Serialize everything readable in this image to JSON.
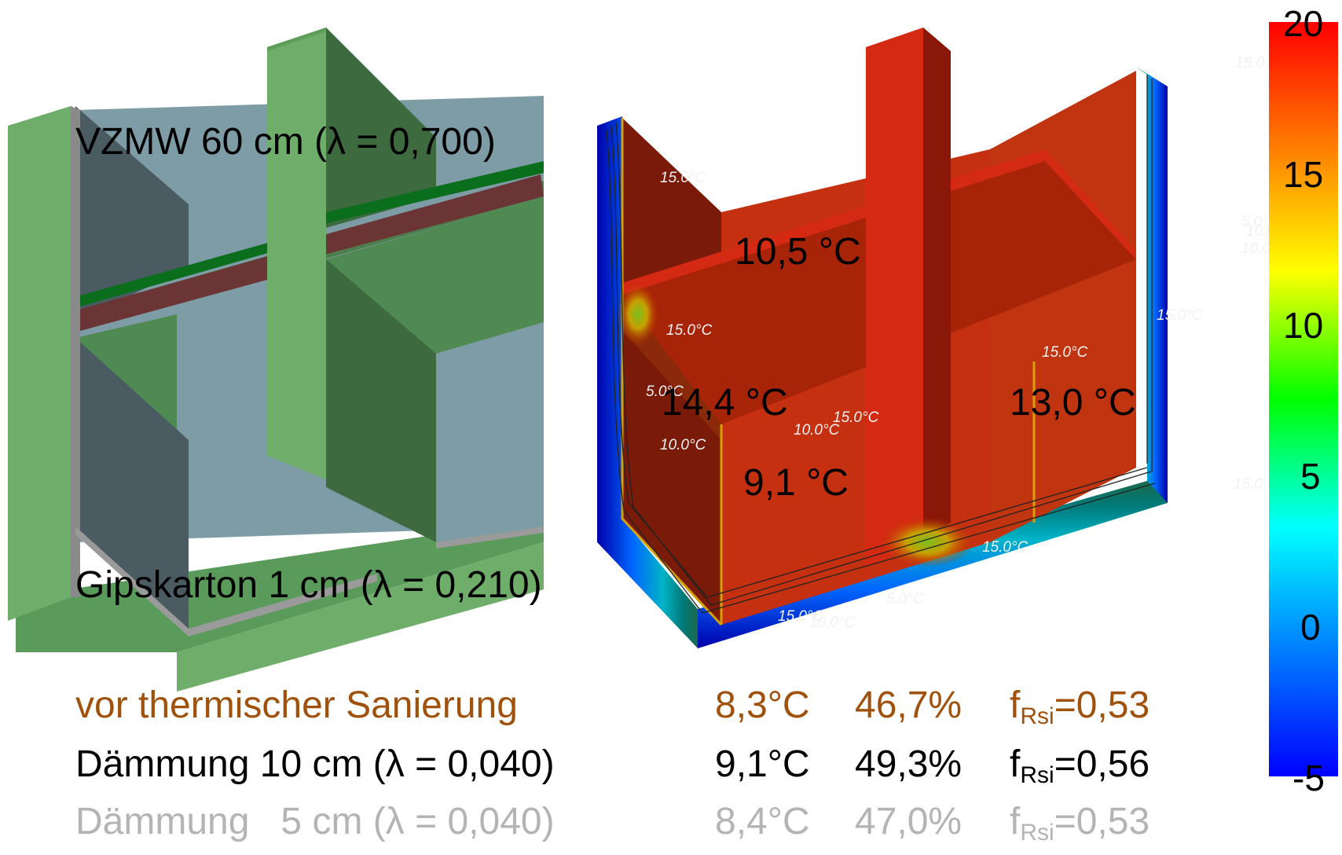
{
  "left_model": {
    "label_wall": "VZMW 60 cm (λ = 0,700)",
    "label_lining": "Gipskarton 1 cm (λ = 0,210)"
  },
  "right_model": {
    "temperature_labels": [
      "10,5 °C",
      "14,4 °C",
      "13,0 °C",
      "9,1 °C"
    ],
    "isotherm_labels": [
      "15.0°C",
      "15.0°C",
      "15.0°C",
      "15.0°C",
      "15.0°C",
      "10.0°C",
      "10.0°C",
      "5.0°C",
      "15.0°C",
      "5.0°C",
      "15.0°C",
      "10.0°C",
      "15.0",
      "15.0",
      "5.0",
      "10.0",
      "10.0"
    ]
  },
  "colorbar": {
    "min": -5,
    "max": 20,
    "ticks": [
      "20",
      "15",
      "10",
      "5",
      "0",
      "-5"
    ],
    "colors": [
      "#ff0000",
      "#ff8000",
      "#ffff00",
      "#00ff00",
      "#00ffff",
      "#0080ff",
      "#0000ff"
    ]
  },
  "results": [
    {
      "name": "vor thermischer Sanierung",
      "temp": "8,3°C",
      "rh": "46,7%",
      "frsi_f": "f",
      "frsi_sub": "Rsi",
      "frsi_val": "=0,53",
      "color": "#a0520d"
    },
    {
      "name": "Dämmung 10 cm (λ = 0,040)",
      "temp": "9,1°C",
      "rh": "49,3%",
      "frsi_f": "f",
      "frsi_sub": "Rsi",
      "frsi_val": "=0,56",
      "color": "#000000"
    },
    {
      "name": "Dämmung   5 cm (λ = 0,040)",
      "temp": "8,4°C",
      "rh": "47,0%",
      "frsi_f": "f",
      "frsi_sub": "Rsi",
      "frsi_val": "=0,53",
      "color": "#b4b4b4"
    }
  ]
}
